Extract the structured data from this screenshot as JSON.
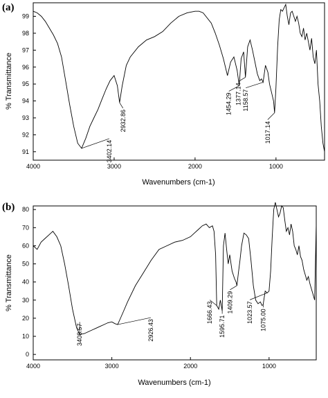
{
  "chart_data": [
    {
      "type": "line",
      "panel_label": "(a)",
      "xlabel": "Wavenumbers (cm-1)",
      "ylabel": "% Transmittance",
      "xlim": [
        4000,
        400
      ],
      "ylim": [
        90.5,
        99.8
      ],
      "x_ticks": [
        4000,
        3000,
        2000,
        1000
      ],
      "y_ticks": [
        91,
        92,
        93,
        94,
        95,
        96,
        97,
        98,
        99
      ],
      "grid": false,
      "series": [
        {
          "x": [
            4000,
            3950,
            3900,
            3850,
            3800,
            3750,
            3700,
            3650,
            3600,
            3550,
            3500,
            3450,
            3402,
            3350,
            3300,
            3250,
            3200,
            3150,
            3100,
            3050,
            3000,
            2960,
            2933,
            2900,
            2850,
            2800,
            2700,
            2600,
            2500,
            2400,
            2300,
            2200,
            2100,
            2000,
            1950,
            1900,
            1800,
            1750,
            1700,
            1650,
            1600,
            1560,
            1520,
            1480,
            1454,
            1430,
            1400,
            1377,
            1350,
            1320,
            1290,
            1260,
            1230,
            1200,
            1180,
            1159,
            1130,
            1100,
            1080,
            1050,
            1030,
            1017,
            1000,
            980,
            960,
            940,
            920,
            900,
            880,
            860,
            840,
            820,
            800,
            780,
            760,
            740,
            720,
            700,
            680,
            660,
            640,
            620,
            600,
            580,
            560,
            540,
            520,
            500,
            480,
            460,
            440,
            420,
            400
          ],
          "y": [
            99.3,
            99.2,
            99.0,
            98.7,
            98.3,
            97.9,
            97.4,
            96.6,
            95.2,
            93.8,
            92.5,
            91.5,
            91.2,
            91.8,
            92.5,
            93.0,
            93.5,
            94.1,
            94.7,
            95.2,
            95.5,
            94.9,
            93.9,
            94.9,
            96.1,
            96.6,
            97.2,
            97.6,
            97.8,
            98.1,
            98.6,
            99.0,
            99.2,
            99.3,
            99.3,
            99.2,
            98.6,
            98.0,
            97.3,
            96.5,
            95.5,
            96.3,
            96.6,
            95.8,
            94.9,
            96.5,
            96.9,
            95.4,
            97.2,
            97.6,
            97.0,
            96.3,
            95.6,
            95.2,
            95.3,
            95.1,
            96.1,
            95.7,
            95.0,
            94.4,
            94.0,
            93.3,
            94.8,
            97.2,
            98.8,
            99.4,
            99.3,
            99.5,
            99.7,
            99.0,
            98.5,
            99.2,
            99.3,
            99.0,
            98.7,
            99.0,
            98.6,
            98.0,
            97.8,
            98.3,
            97.6,
            98.0,
            97.5,
            97.0,
            97.7,
            96.6,
            96.2,
            97.0,
            95.0,
            94.0,
            92.5,
            91.5,
            91.0
          ]
        }
      ],
      "annotations": [
        {
          "text": "3402.14",
          "x": 3402,
          "y": 91.2
        },
        {
          "text": "2932.86",
          "x": 2933,
          "y": 93.9
        },
        {
          "text": "1454.29",
          "x": 1454,
          "y": 94.9
        },
        {
          "text": "1377.14",
          "x": 1377,
          "y": 95.4
        },
        {
          "text": "1158.57",
          "x": 1159,
          "y": 95.1
        },
        {
          "text": "1017.14",
          "x": 1017,
          "y": 93.3
        }
      ]
    },
    {
      "type": "line",
      "panel_label": "(b)",
      "xlabel": "Wavenumbers (cm-1)",
      "ylabel": "% Transmittance",
      "xlim": [
        4000,
        400
      ],
      "ylim": [
        -3,
        82
      ],
      "x_ticks": [
        4000,
        3000,
        2000,
        1000
      ],
      "y_ticks": [
        0,
        10,
        20,
        30,
        40,
        50,
        60,
        70,
        80
      ],
      "grid": false,
      "series": [
        {
          "x": [
            4000,
            3950,
            3900,
            3850,
            3800,
            3750,
            3700,
            3650,
            3600,
            3550,
            3500,
            3450,
            3409,
            3350,
            3300,
            3250,
            3200,
            3150,
            3100,
            3050,
            3000,
            2960,
            2926,
            2900,
            2850,
            2800,
            2700,
            2600,
            2500,
            2400,
            2300,
            2200,
            2100,
            2000,
            1950,
            1900,
            1850,
            1800,
            1760,
            1720,
            1700,
            1680,
            1666,
            1640,
            1620,
            1600,
            1596,
            1580,
            1560,
            1540,
            1520,
            1500,
            1470,
            1440,
            1420,
            1409,
            1390,
            1370,
            1350,
            1320,
            1290,
            1260,
            1230,
            1200,
            1170,
            1140,
            1110,
            1090,
            1075,
            1050,
            1024,
            1000,
            980,
            960,
            940,
            920,
            900,
            880,
            860,
            840,
            820,
            800,
            780,
            760,
            740,
            720,
            700,
            680,
            660,
            640,
            620,
            600,
            580,
            560,
            540,
            520,
            500,
            480,
            460,
            440,
            420,
            400
          ],
          "y": [
            60,
            58,
            62,
            64,
            66,
            68,
            65,
            60,
            50,
            38,
            25,
            15,
            11,
            11.5,
            12.5,
            13.5,
            14.5,
            15.5,
            16.5,
            17.5,
            18.0,
            17.0,
            16.5,
            19,
            24,
            29,
            38,
            45,
            52,
            58,
            60,
            62,
            63,
            65,
            67,
            69,
            71,
            72,
            70,
            71,
            68,
            55,
            27,
            25,
            30,
            25,
            24,
            60,
            67,
            58,
            50,
            55,
            46,
            42,
            40,
            38,
            45,
            52,
            60,
            67,
            66,
            64,
            52,
            38,
            30,
            28,
            29,
            27,
            27.5,
            35,
            34,
            35,
            46,
            65,
            80,
            84,
            80,
            76,
            78,
            82,
            81,
            74,
            68,
            70,
            66,
            72,
            68,
            60,
            58,
            55,
            60,
            54,
            52,
            47,
            44,
            41,
            43,
            39,
            36,
            33,
            30,
            72
          ]
        }
      ],
      "annotations": [
        {
          "text": "3408.57",
          "x": 3409,
          "y": 11
        },
        {
          "text": "2926.43",
          "x": 2926,
          "y": 16.5
        },
        {
          "text": "1666.43",
          "x": 1666,
          "y": 27
        },
        {
          "text": "1595.71",
          "x": 1596,
          "y": 24
        },
        {
          "text": "1409.29",
          "x": 1409,
          "y": 38
        },
        {
          "text": "1075.00",
          "x": 1075,
          "y": 27.5
        },
        {
          "text": "1023.57",
          "x": 1024,
          "y": 34
        }
      ]
    }
  ]
}
